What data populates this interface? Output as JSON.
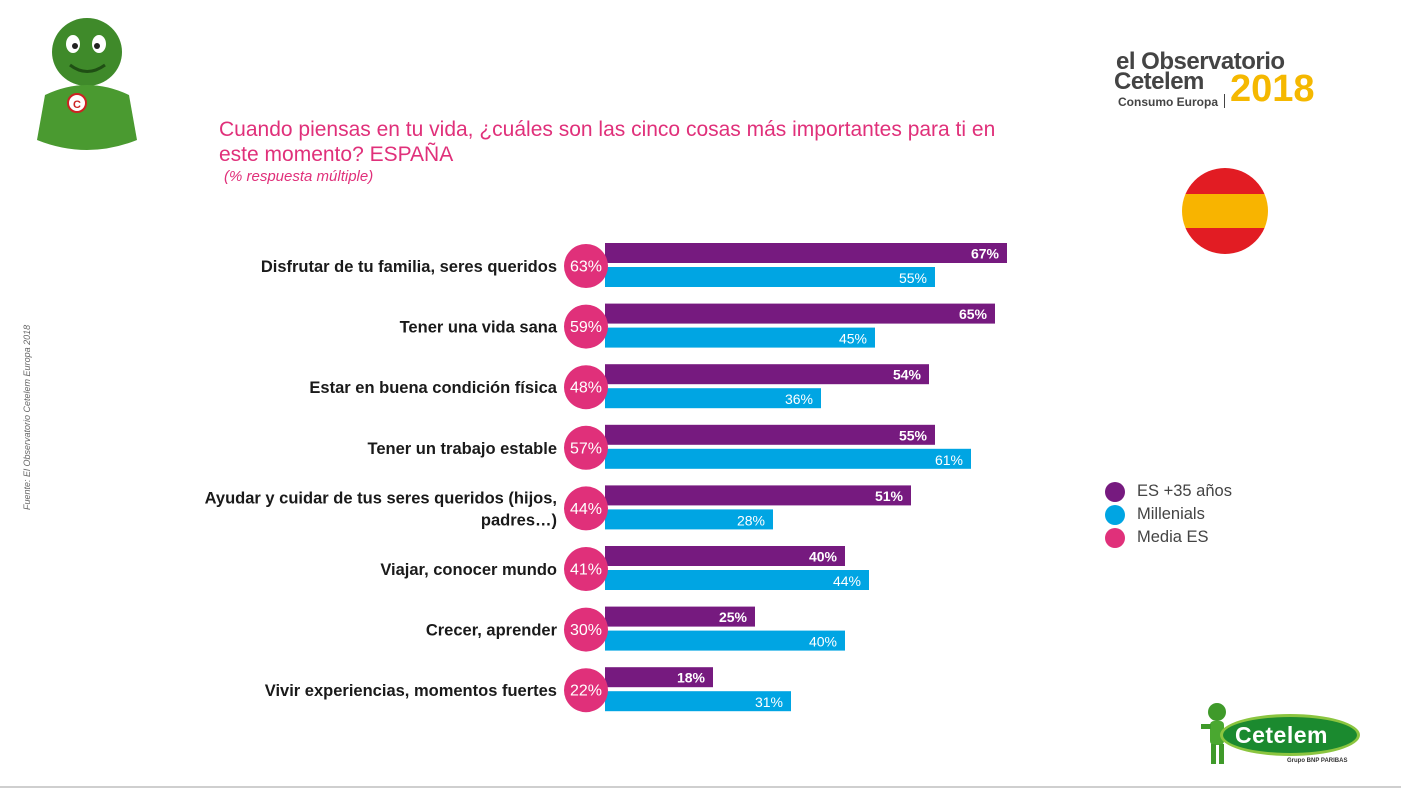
{
  "header": {
    "title": "Cuando piensas en tu vida, ¿cuáles son las cinco cosas más importantes para ti en este momento? ESPAÑA",
    "subtitle": "(% respuesta múltiple)",
    "source": "Fuente: El Observatorio Cetelem Europa 2018"
  },
  "logo_top": {
    "line1": "el Observatorio",
    "line2": "Cetelem",
    "line3": "Consumo Europa",
    "year": "2018"
  },
  "logo_bottom": {
    "word": "Cetelem",
    "sub": "Grupo BNP PARIBAS"
  },
  "colors": {
    "es35": "#761a7f",
    "millenials": "#00a5e3",
    "media": "#e0307a",
    "title": "#e0307a"
  },
  "legend": [
    {
      "label": "ES +35 años",
      "color": "#761a7f"
    },
    {
      "label": "Millenials",
      "color": "#00a5e3"
    },
    {
      "label": "Media ES",
      "color": "#e0307a"
    }
  ],
  "chart_data": {
    "type": "bar",
    "orientation": "horizontal",
    "unit": "%",
    "categories": [
      "Disfrutar de tu familia, seres queridos",
      "Tener una vida sana",
      "Estar en buena condición física",
      "Tener un trabajo estable",
      "Ayudar y cuidar de tus seres queridos (hijos, padres…)",
      "Viajar, conocer mundo",
      "Crecer, aprender",
      "Vivir experiencias, momentos fuertes"
    ],
    "category_lines": [
      [
        "Disfrutar de tu familia, seres queridos"
      ],
      [
        "Tener una vida sana"
      ],
      [
        "Estar en buena condición física"
      ],
      [
        "Tener un trabajo estable"
      ],
      [
        "Ayudar y cuidar de tus seres queridos (hijos,",
        "padres…)"
      ],
      [
        "Viajar, conocer mundo"
      ],
      [
        "Crecer, aprender"
      ],
      [
        "Vivir experiencias, momentos fuertes"
      ]
    ],
    "series": [
      {
        "name": "ES +35 años",
        "values": [
          67,
          65,
          54,
          55,
          51,
          40,
          25,
          18
        ]
      },
      {
        "name": "Millenials",
        "values": [
          55,
          45,
          36,
          61,
          28,
          44,
          40,
          31
        ]
      },
      {
        "name": "Media ES",
        "values": [
          63,
          59,
          48,
          57,
          44,
          41,
          30,
          22
        ]
      }
    ],
    "legend_position": "right",
    "grid": false
  }
}
